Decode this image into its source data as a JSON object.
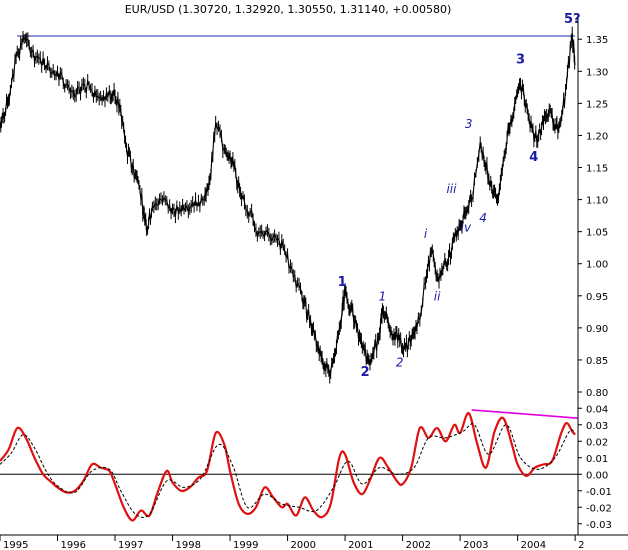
{
  "chart_data": {
    "type": "line",
    "title": "EUR/USD (1.30720, 1.32920, 1.30550, 1.31140, +0.00580)",
    "x_ticks": [
      "1995",
      "1996",
      "1997",
      "1998",
      "1999",
      "2000",
      "2001",
      "2002",
      "2003",
      "2004",
      "2"
    ],
    "xlim": [
      1995.0,
      2005.05
    ],
    "price_panel": {
      "ylim": [
        0.8,
        1.38
      ],
      "y_ticks": [
        "0.80",
        "0.85",
        "0.90",
        "0.95",
        "1.00",
        "1.05",
        "1.10",
        "1.15",
        "1.20",
        "1.25",
        "1.30",
        "1.35"
      ],
      "resistance_line": {
        "y": 1.355,
        "x_start": 1995.3,
        "x_end": 2005.0,
        "color": "#2020b0"
      },
      "series": [
        {
          "color": "#000000",
          "points": [
            [
              1995.0,
              1.22
            ],
            [
              1995.08,
              1.23
            ],
            [
              1995.18,
              1.27
            ],
            [
              1995.3,
              1.33
            ],
            [
              1995.42,
              1.35
            ],
            [
              1995.55,
              1.33
            ],
            [
              1995.7,
              1.32
            ],
            [
              1995.85,
              1.31
            ],
            [
              1996.0,
              1.3
            ],
            [
              1996.15,
              1.28
            ],
            [
              1996.3,
              1.26
            ],
            [
              1996.45,
              1.28
            ],
            [
              1996.6,
              1.27
            ],
            [
              1996.75,
              1.26
            ],
            [
              1996.9,
              1.27
            ],
            [
              1997.0,
              1.26
            ],
            [
              1997.1,
              1.24
            ],
            [
              1997.2,
              1.18
            ],
            [
              1997.3,
              1.15
            ],
            [
              1997.4,
              1.13
            ],
            [
              1997.5,
              1.08
            ],
            [
              1997.55,
              1.05
            ],
            [
              1997.65,
              1.09
            ],
            [
              1997.8,
              1.1
            ],
            [
              1997.95,
              1.09
            ],
            [
              1998.1,
              1.08
            ],
            [
              1998.25,
              1.09
            ],
            [
              1998.4,
              1.1
            ],
            [
              1998.55,
              1.1
            ],
            [
              1998.65,
              1.13
            ],
            [
              1998.75,
              1.22
            ],
            [
              1998.9,
              1.18
            ],
            [
              1999.0,
              1.17
            ],
            [
              1999.1,
              1.14
            ],
            [
              1999.2,
              1.1
            ],
            [
              1999.35,
              1.08
            ],
            [
              1999.5,
              1.05
            ],
            [
              1999.65,
              1.05
            ],
            [
              1999.8,
              1.04
            ],
            [
              1999.95,
              1.02
            ],
            [
              2000.1,
              0.98
            ],
            [
              2000.25,
              0.95
            ],
            [
              2000.35,
              0.92
            ],
            [
              2000.45,
              0.9
            ],
            [
              2000.55,
              0.86
            ],
            [
              2000.65,
              0.84
            ],
            [
              2000.75,
              0.83
            ],
            [
              2000.85,
              0.87
            ],
            [
              2000.95,
              0.93
            ],
            [
              2001.0,
              0.96
            ],
            [
              2001.1,
              0.93
            ],
            [
              2001.2,
              0.9
            ],
            [
              2001.3,
              0.87
            ],
            [
              2001.4,
              0.85
            ],
            [
              2001.5,
              0.86
            ],
            [
              2001.6,
              0.89
            ],
            [
              2001.65,
              0.93
            ],
            [
              2001.75,
              0.91
            ],
            [
              2001.85,
              0.89
            ],
            [
              2001.95,
              0.88
            ],
            [
              2002.05,
              0.87
            ],
            [
              2002.15,
              0.88
            ],
            [
              2002.25,
              0.9
            ],
            [
              2002.4,
              0.97
            ],
            [
              2002.5,
              1.02
            ],
            [
              2002.6,
              0.98
            ],
            [
              2002.7,
              0.99
            ],
            [
              2002.8,
              1.01
            ],
            [
              2002.9,
              1.04
            ],
            [
              2003.0,
              1.06
            ],
            [
              2003.1,
              1.08
            ],
            [
              2003.2,
              1.1
            ],
            [
              2003.35,
              1.19
            ],
            [
              2003.45,
              1.15
            ],
            [
              2003.55,
              1.12
            ],
            [
              2003.65,
              1.1
            ],
            [
              2003.75,
              1.16
            ],
            [
              2003.85,
              1.21
            ],
            [
              2003.95,
              1.25
            ],
            [
              2004.05,
              1.28
            ],
            [
              2004.15,
              1.25
            ],
            [
              2004.25,
              1.21
            ],
            [
              2004.35,
              1.19
            ],
            [
              2004.45,
              1.22
            ],
            [
              2004.55,
              1.24
            ],
            [
              2004.65,
              1.21
            ],
            [
              2004.75,
              1.22
            ],
            [
              2004.85,
              1.28
            ],
            [
              2004.95,
              1.36
            ],
            [
              2005.0,
              1.31
            ]
          ]
        }
      ],
      "wave_labels": [
        {
          "text": "1",
          "x": 2000.95,
          "y": 0.965,
          "style": "major"
        },
        {
          "text": "2",
          "x": 2001.35,
          "y": 0.825,
          "style": "major"
        },
        {
          "text": "1",
          "x": 2001.65,
          "y": 0.943,
          "style": "minor"
        },
        {
          "text": "2",
          "x": 2001.95,
          "y": 0.84,
          "style": "minor"
        },
        {
          "text": "i",
          "x": 2002.4,
          "y": 1.04,
          "style": "minor"
        },
        {
          "text": "ii",
          "x": 2002.6,
          "y": 0.943,
          "style": "minor"
        },
        {
          "text": "iii",
          "x": 2002.85,
          "y": 1.11,
          "style": "minor"
        },
        {
          "text": "iv",
          "x": 2003.1,
          "y": 1.05,
          "style": "minor"
        },
        {
          "text": "3",
          "x": 2003.15,
          "y": 1.212,
          "style": "minor"
        },
        {
          "text": "4",
          "x": 2003.4,
          "y": 1.065,
          "style": "minor"
        },
        {
          "text": "3",
          "x": 2004.05,
          "y": 1.312,
          "style": "major"
        },
        {
          "text": "4",
          "x": 2004.28,
          "y": 1.16,
          "style": "major"
        },
        {
          "text": "5?",
          "x": 2004.95,
          "y": 1.375,
          "style": "major"
        }
      ]
    },
    "oscillator_panel": {
      "ylim": [
        -0.035,
        0.045
      ],
      "y_ticks": [
        "-0.03",
        "-0.02",
        "-0.01",
        "0.00",
        "0.01",
        "0.02",
        "0.03",
        "0.04"
      ],
      "zero_line": 0.0,
      "divergence_line": {
        "x_start": 2003.2,
        "y_start": 0.039,
        "x_end": 2005.05,
        "y_end": 0.034,
        "color": "#e000e0"
      },
      "series": [
        {
          "color": "#e01010",
          "points": [
            [
              1995.0,
              0.008
            ],
            [
              1995.15,
              0.015
            ],
            [
              1995.3,
              0.028
            ],
            [
              1995.45,
              0.022
            ],
            [
              1995.6,
              0.01
            ],
            [
              1995.75,
              0.0
            ],
            [
              1995.9,
              -0.005
            ],
            [
              1996.0,
              -0.008
            ],
            [
              1996.15,
              -0.011
            ],
            [
              1996.3,
              -0.01
            ],
            [
              1996.45,
              -0.004
            ],
            [
              1996.6,
              0.006
            ],
            [
              1996.75,
              0.004
            ],
            [
              1996.9,
              0.002
            ],
            [
              1997.0,
              -0.006
            ],
            [
              1997.15,
              -0.02
            ],
            [
              1997.3,
              -0.028
            ],
            [
              1997.45,
              -0.022
            ],
            [
              1997.6,
              -0.025
            ],
            [
              1997.75,
              -0.01
            ],
            [
              1997.9,
              0.002
            ],
            [
              1998.0,
              -0.005
            ],
            [
              1998.15,
              -0.01
            ],
            [
              1998.3,
              -0.008
            ],
            [
              1998.45,
              -0.002
            ],
            [
              1998.6,
              0.002
            ],
            [
              1998.75,
              0.025
            ],
            [
              1998.9,
              0.018
            ],
            [
              1999.0,
              0.002
            ],
            [
              1999.15,
              -0.018
            ],
            [
              1999.3,
              -0.024
            ],
            [
              1999.45,
              -0.02
            ],
            [
              1999.6,
              -0.008
            ],
            [
              1999.75,
              -0.014
            ],
            [
              1999.9,
              -0.02
            ],
            [
              2000.0,
              -0.018
            ],
            [
              2000.15,
              -0.025
            ],
            [
              2000.3,
              -0.014
            ],
            [
              2000.45,
              -0.022
            ],
            [
              2000.6,
              -0.026
            ],
            [
              2000.75,
              -0.018
            ],
            [
              2000.9,
              0.01
            ],
            [
              2001.0,
              0.012
            ],
            [
              2001.15,
              -0.005
            ],
            [
              2001.3,
              -0.012
            ],
            [
              2001.45,
              -0.002
            ],
            [
              2001.6,
              0.01
            ],
            [
              2001.75,
              0.004
            ],
            [
              2001.9,
              -0.004
            ],
            [
              2002.0,
              -0.006
            ],
            [
              2002.15,
              0.004
            ],
            [
              2002.3,
              0.028
            ],
            [
              2002.45,
              0.022
            ],
            [
              2002.6,
              0.028
            ],
            [
              2002.75,
              0.02
            ],
            [
              2002.9,
              0.03
            ],
            [
              2003.0,
              0.025
            ],
            [
              2003.15,
              0.037
            ],
            [
              2003.3,
              0.018
            ],
            [
              2003.45,
              0.004
            ],
            [
              2003.6,
              0.026
            ],
            [
              2003.75,
              0.034
            ],
            [
              2003.9,
              0.018
            ],
            [
              2004.0,
              0.006
            ],
            [
              2004.15,
              -0.001
            ],
            [
              2004.3,
              0.004
            ],
            [
              2004.45,
              0.006
            ],
            [
              2004.6,
              0.008
            ],
            [
              2004.75,
              0.024
            ],
            [
              2004.85,
              0.031
            ],
            [
              2004.95,
              0.026
            ],
            [
              2005.0,
              0.024
            ]
          ]
        },
        {
          "color": "#000000",
          "dashed": true,
          "points": [
            [
              1995.0,
              0.006
            ],
            [
              1995.2,
              0.013
            ],
            [
              1995.4,
              0.024
            ],
            [
              1995.6,
              0.016
            ],
            [
              1995.8,
              0.002
            ],
            [
              1996.0,
              -0.007
            ],
            [
              1996.3,
              -0.011
            ],
            [
              1996.6,
              0.002
            ],
            [
              1996.9,
              0.003
            ],
            [
              1997.1,
              -0.01
            ],
            [
              1997.35,
              -0.024
            ],
            [
              1997.6,
              -0.024
            ],
            [
              1997.9,
              -0.004
            ],
            [
              1998.2,
              -0.008
            ],
            [
              1998.5,
              -0.002
            ],
            [
              1998.8,
              0.018
            ],
            [
              1999.05,
              0.005
            ],
            [
              1999.3,
              -0.02
            ],
            [
              1999.6,
              -0.012
            ],
            [
              1999.9,
              -0.018
            ],
            [
              2000.2,
              -0.02
            ],
            [
              2000.5,
              -0.022
            ],
            [
              2000.8,
              -0.008
            ],
            [
              2001.05,
              0.008
            ],
            [
              2001.3,
              -0.006
            ],
            [
              2001.6,
              0.004
            ],
            [
              2001.9,
              0.0
            ],
            [
              2002.2,
              0.004
            ],
            [
              2002.45,
              0.022
            ],
            [
              2002.75,
              0.022
            ],
            [
              2003.05,
              0.026
            ],
            [
              2003.25,
              0.03
            ],
            [
              2003.5,
              0.012
            ],
            [
              2003.8,
              0.03
            ],
            [
              2004.05,
              0.01
            ],
            [
              2004.35,
              0.003
            ],
            [
              2004.65,
              0.01
            ],
            [
              2004.9,
              0.026
            ],
            [
              2005.0,
              0.025
            ]
          ]
        }
      ]
    }
  }
}
